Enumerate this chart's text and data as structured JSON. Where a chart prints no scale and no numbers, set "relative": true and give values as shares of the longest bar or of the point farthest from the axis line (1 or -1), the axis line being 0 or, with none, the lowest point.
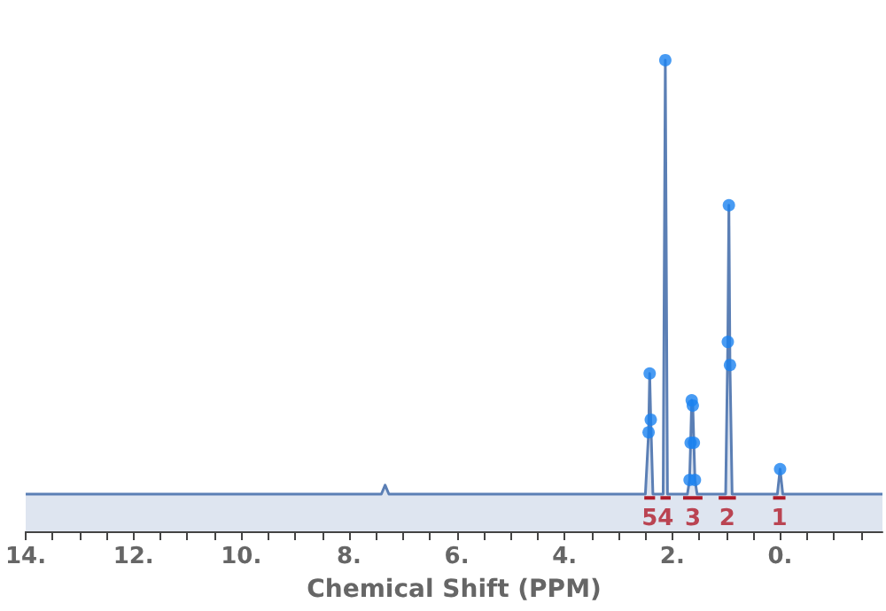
{
  "chart_data": {
    "type": "area",
    "xlabel": "Chemical Shift (PPM)",
    "relative": true,
    "grid": false,
    "tick_labels": "x",
    "xlim": [
      14,
      -1.9
    ],
    "xticks": [
      {
        "value": 14,
        "label": "14."
      },
      {
        "value": 13.5,
        "label": null
      },
      {
        "value": 13,
        "label": null
      },
      {
        "value": 12.5,
        "label": null
      },
      {
        "value": 12,
        "label": "12."
      },
      {
        "value": 11.5,
        "label": null
      },
      {
        "value": 11,
        "label": null
      },
      {
        "value": 10.5,
        "label": null
      },
      {
        "value": 10,
        "label": "10."
      },
      {
        "value": 9.5,
        "label": null
      },
      {
        "value": 9,
        "label": null
      },
      {
        "value": 8.5,
        "label": null
      },
      {
        "value": 8,
        "label": "8."
      },
      {
        "value": 7.5,
        "label": null
      },
      {
        "value": 7,
        "label": null
      },
      {
        "value": 6.5,
        "label": null
      },
      {
        "value": 6,
        "label": "6."
      },
      {
        "value": 5.5,
        "label": null
      },
      {
        "value": 5,
        "label": null
      },
      {
        "value": 4.5,
        "label": null
      },
      {
        "value": 4,
        "label": "4."
      },
      {
        "value": 3.5,
        "label": null
      },
      {
        "value": 3,
        "label": null
      },
      {
        "value": 2.5,
        "label": null
      },
      {
        "value": 2,
        "label": "2."
      },
      {
        "value": 1.5,
        "label": null
      },
      {
        "value": 1,
        "label": null
      },
      {
        "value": 0.5,
        "label": null
      },
      {
        "value": 0,
        "label": "0."
      },
      {
        "value": -0.5,
        "label": null
      },
      {
        "value": -1,
        "label": null
      },
      {
        "value": -1.5,
        "label": null
      }
    ],
    "series": [
      {
        "color": "#5b7fb5",
        "marker": "none",
        "x": [
          14,
          7.4,
          7.33,
          7.26,
          2.5,
          2.44,
          2.42,
          2.4,
          2.36,
          2.17,
          2.13,
          2.09,
          1.72,
          1.68,
          1.66,
          1.64,
          1.62,
          1.6,
          1.58,
          1.54,
          1.01,
          0.97,
          0.95,
          0.93,
          0.89,
          0.05,
          0.0,
          -0.05,
          -1.9
        ],
        "values": [
          0.079,
          0.079,
          0.098,
          0.079,
          0.079,
          0.21,
          0.335,
          0.237,
          0.079,
          0.079,
          1,
          0.079,
          0.079,
          0.109,
          0.188,
          0.278,
          0.267,
          0.188,
          0.109,
          0.079,
          0.079,
          0.402,
          0.692,
          0.353,
          0.079,
          0.079,
          0.132,
          0.079,
          0.079
        ]
      },
      {
        "type": "scatter",
        "color": "#1a82f0",
        "marker": "circle",
        "x": [
          2.44,
          2.42,
          2.4,
          2.13,
          1.68,
          1.66,
          1.64,
          1.62,
          1.6,
          1.58,
          0.97,
          0.95,
          0.93,
          0.0
        ],
        "values": [
          0.21,
          0.335,
          0.237,
          1,
          0.109,
          0.188,
          0.278,
          0.267,
          0.188,
          0.109,
          0.402,
          0.692,
          0.353,
          0.132
        ]
      },
      {
        "type": "line",
        "color": "#b01c2a",
        "marker": "none",
        "x": [
          2.52,
          2.32,
          2.27,
          2.22,
          2.03,
          1.9,
          1.8,
          1.44,
          1.3,
          1.14,
          0.82,
          0.5,
          0.13,
          -0.1
        ],
        "values": [
          0.071,
          0.071,
          null,
          0.071,
          0.071,
          null,
          0.071,
          0.071,
          null,
          0.071,
          0.071,
          null,
          0.071,
          0.071
        ]
      }
    ],
    "annotations": [
      {
        "text": "5",
        "x": 2.42,
        "y": 0.071
      },
      {
        "text": "4",
        "x": 2.125,
        "y": 0.071
      },
      {
        "text": "3",
        "x": 1.62,
        "y": 0.071
      },
      {
        "text": "2",
        "x": 0.98,
        "y": 0.071
      },
      {
        "text": "1",
        "x": 0.015,
        "y": 0.071
      }
    ]
  }
}
